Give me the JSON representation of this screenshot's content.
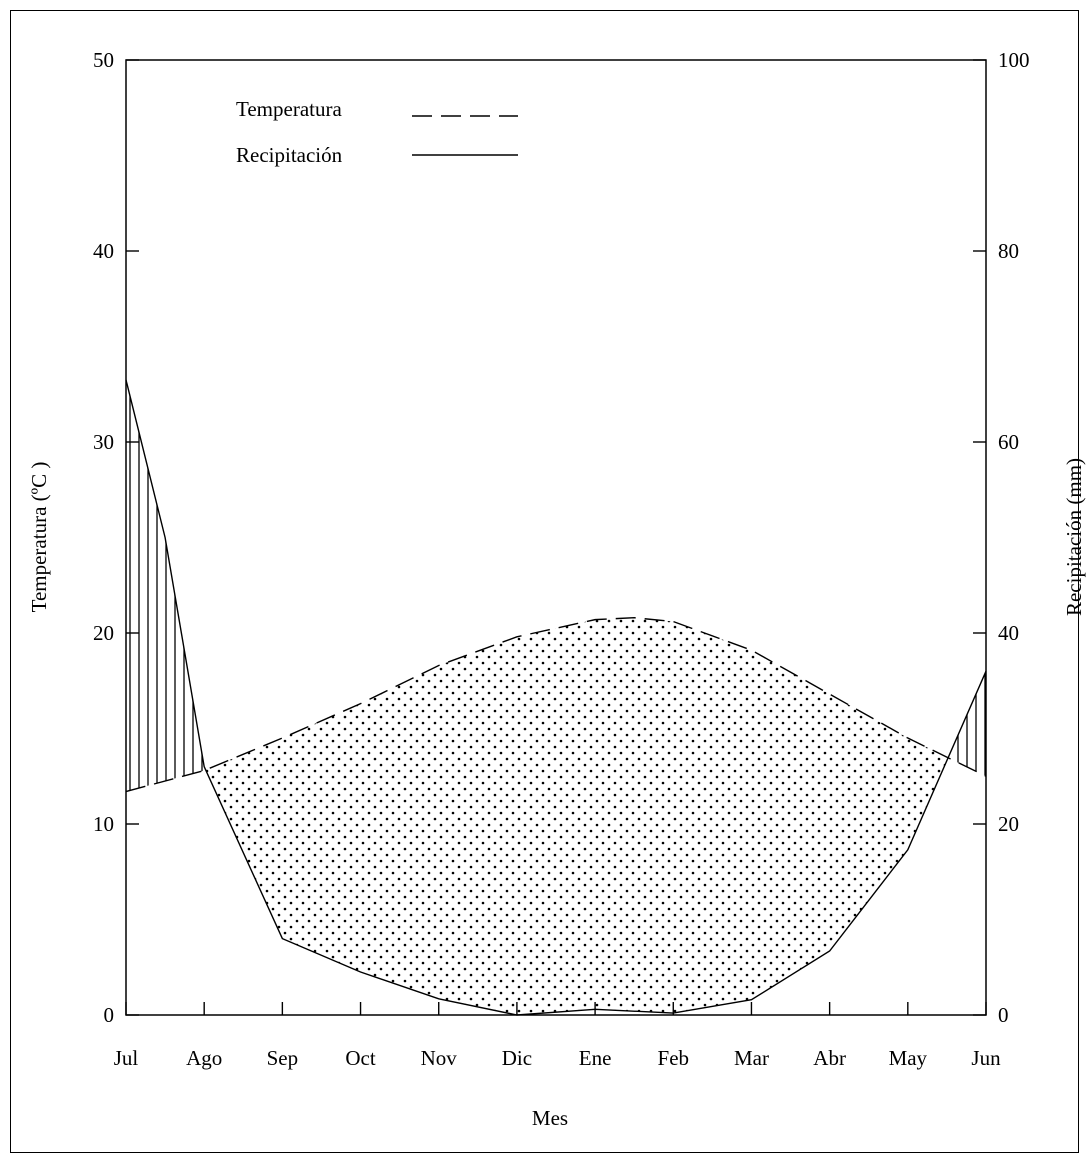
{
  "chart_data": {
    "type": "line",
    "title": "",
    "xlabel": "Mes",
    "ylabel_left": "Temperatura (ºC )",
    "ylabel_right": "Recipitación (mm)",
    "categories": [
      "Jul",
      "Ago",
      "Sep",
      "Oct",
      "Nov",
      "Dic",
      "Ene",
      "Feb",
      "Mar",
      "Abr",
      "May",
      "Jun"
    ],
    "ylim_left": [
      0,
      50
    ],
    "ylim_right": [
      0,
      100
    ],
    "yticks_left": [
      "0",
      "10",
      "20",
      "30",
      "40",
      "50"
    ],
    "yticks_right": [
      "0",
      "20",
      "40",
      "60",
      "80",
      "100"
    ],
    "grid": false,
    "legend_position": "top-left",
    "series": [
      {
        "name": "Temperatura",
        "axis": "left",
        "style": "dashed",
        "x": [
          0,
          1,
          2,
          3,
          4,
          5,
          6,
          6.5,
          7,
          8,
          9,
          10,
          11
        ],
        "values": [
          11.7,
          12.8,
          14.5,
          16.3,
          18.3,
          19.8,
          20.7,
          20.8,
          20.6,
          19.1,
          16.8,
          14.5,
          12.5
        ]
      },
      {
        "name": "Recipitación",
        "axis": "right",
        "style": "solid",
        "x": [
          0,
          0.5,
          1,
          2,
          3,
          4,
          5,
          6,
          7,
          8,
          9,
          10,
          11
        ],
        "values": [
          66.5,
          50,
          26,
          8,
          4.5,
          1.7,
          0,
          0.6,
          0.2,
          1.6,
          6.7,
          17.3,
          36
        ]
      }
    ],
    "annotations": {
      "humid_hatch": "vertical lines where precipitation exceeds temperature",
      "dry_fill": "dotted where temperature exceeds precipitation"
    }
  }
}
